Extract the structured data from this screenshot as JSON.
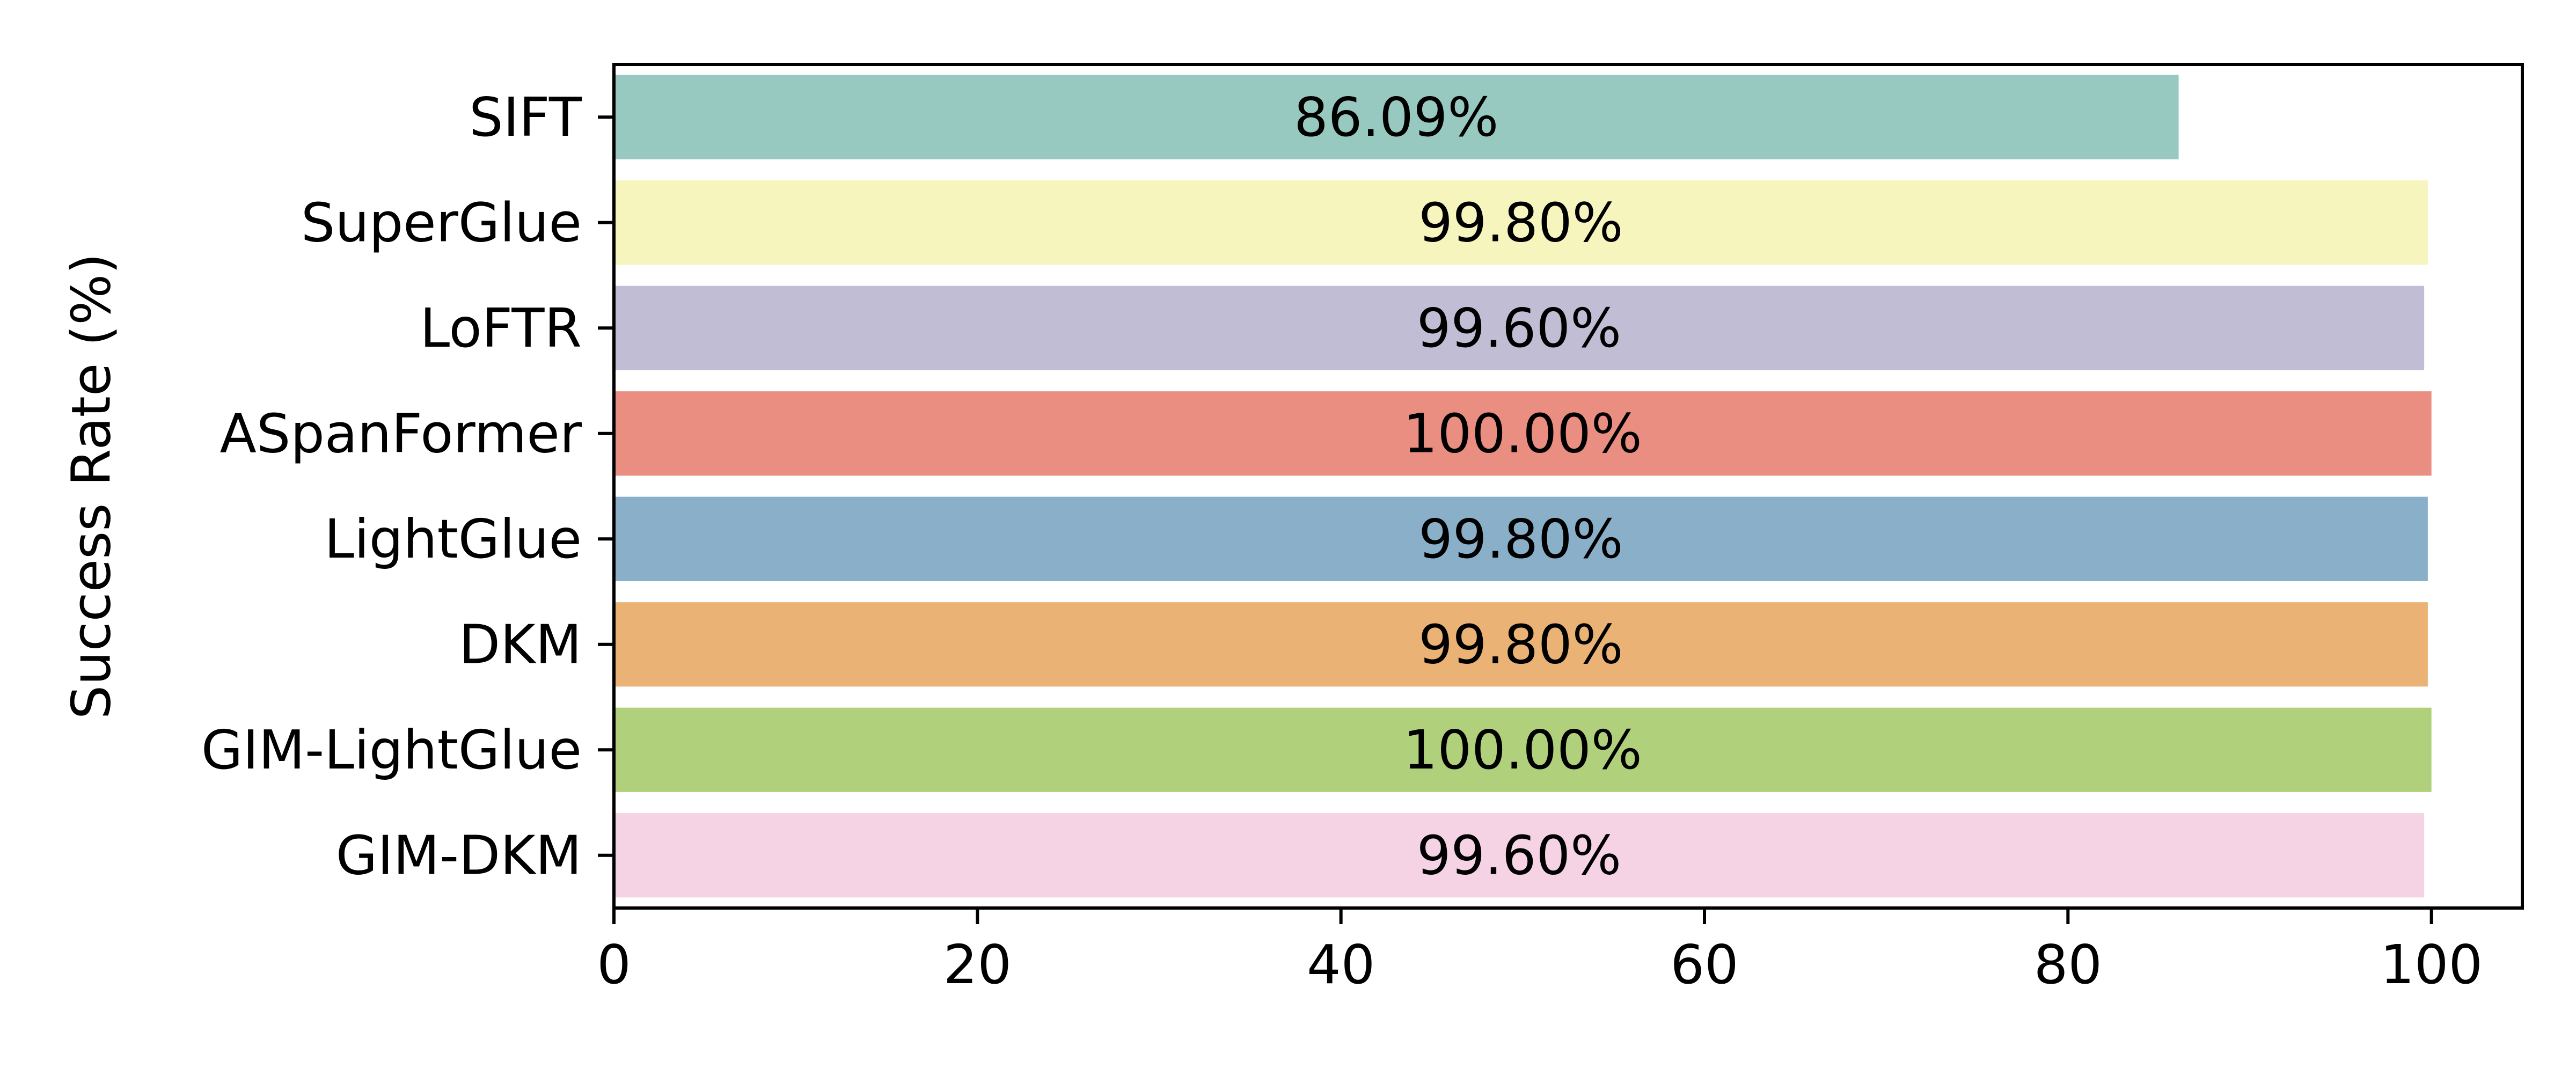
{
  "chart_data": {
    "type": "bar",
    "orientation": "horizontal",
    "title": "",
    "xlabel": "",
    "ylabel": "Success Rate (%)",
    "xlim": [
      0,
      105
    ],
    "grid": false,
    "legend": "none",
    "x_ticks": [
      "0",
      "20",
      "40",
      "60",
      "80",
      "100"
    ],
    "categories": [
      "SIFT",
      "SuperGlue",
      "LoFTR",
      "ASpanFormer",
      "LightGlue",
      "DKM",
      "GIM-LightGlue",
      "GIM-DKM"
    ],
    "values": [
      86.09,
      99.8,
      99.6,
      100.0,
      99.8,
      99.8,
      100.0,
      99.6
    ],
    "data_labels": [
      "86.09%",
      "99.80%",
      "99.60%",
      "100.00%",
      "99.80%",
      "99.80%",
      "100.00%",
      "99.60%"
    ],
    "colors": [
      "#98c9c0",
      "#f6f5bd",
      "#c1bdd5",
      "#eb8e82",
      "#8aafc9",
      "#ebb275",
      "#b0d07b",
      "#f5d3e4"
    ]
  }
}
